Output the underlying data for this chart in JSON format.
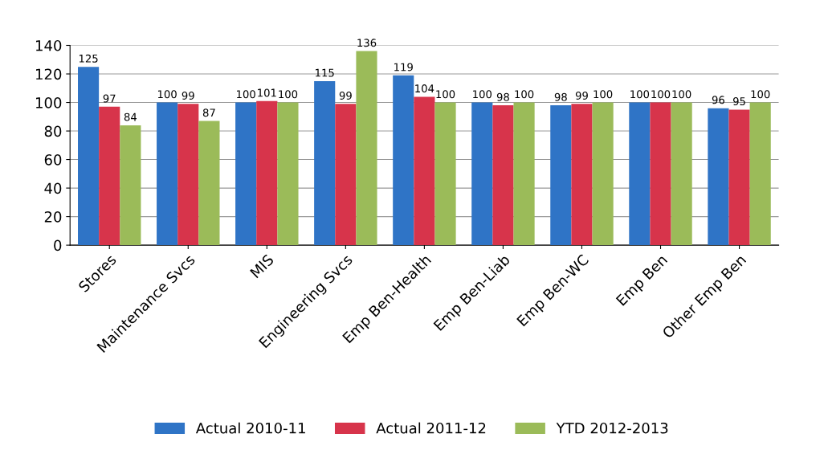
{
  "chart_data": {
    "type": "bar",
    "categories": [
      "Stores",
      "Maintenance Svcs",
      "MIS",
      "Engineering Svcs",
      "Emp Ben-Health",
      "Emp Ben-Liab",
      "Emp Ben-WC",
      "Emp Ben",
      "Other Emp Ben"
    ],
    "series": [
      {
        "name": "Actual 2010-11",
        "color": "#2f74c6",
        "values": [
          125,
          100,
          100,
          115,
          119,
          100,
          98,
          100,
          96
        ]
      },
      {
        "name": "Actual 2011-12",
        "color": "#d7344b",
        "values": [
          97,
          99,
          101,
          99,
          104,
          98,
          99,
          100,
          95
        ]
      },
      {
        "name": "YTD 2012-2013",
        "color": "#9bbb59",
        "values": [
          84,
          87,
          100,
          136,
          100,
          100,
          100,
          100,
          100
        ]
      }
    ],
    "ylim": [
      0,
      140
    ],
    "yticks": [
      0,
      20,
      40,
      60,
      80,
      100,
      120,
      140
    ],
    "grid": "y",
    "legend": "bottom",
    "data_labels": true
  }
}
